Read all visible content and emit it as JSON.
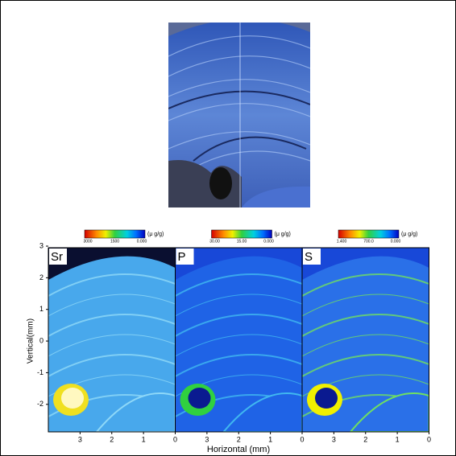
{
  "figure": {
    "panels": [
      {
        "element": "Sr",
        "scale_labels": [
          "3000",
          "1500",
          "0.000"
        ]
      },
      {
        "element": "P",
        "scale_labels": [
          "30.00",
          "15.00",
          "0.000"
        ]
      },
      {
        "element": "S",
        "scale_labels": [
          "1.400",
          "700.0",
          "0.000"
        ]
      }
    ],
    "unit": "(μ g/g)",
    "y_label": "Vertical(mm)",
    "x_label": "Horizontal (mm)",
    "ylim": [
      -2.87,
      2.95
    ],
    "yticks": [
      3,
      2,
      1,
      0,
      -1,
      -2
    ],
    "xlim": [
      4,
      0
    ],
    "xticks": [
      3,
      2,
      1,
      0
    ]
  }
}
